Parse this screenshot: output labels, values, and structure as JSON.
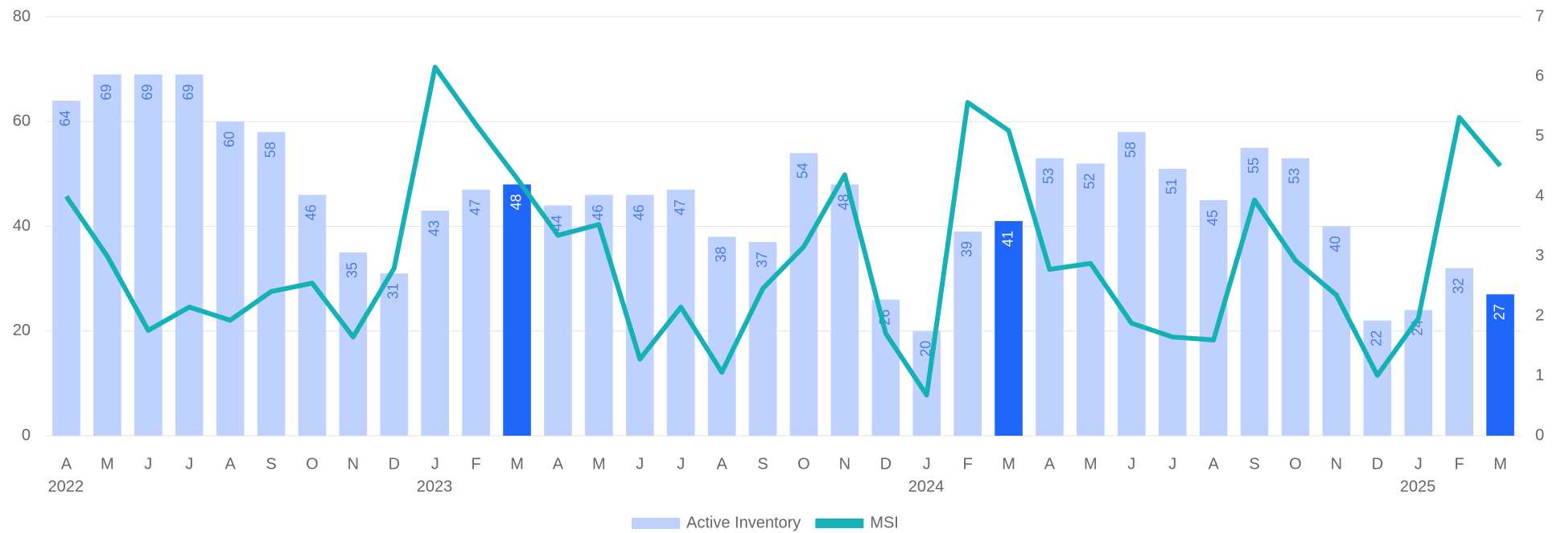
{
  "chart_data": {
    "type": "bar_line",
    "categories": [
      "A",
      "M",
      "J",
      "J",
      "A",
      "S",
      "O",
      "N",
      "D",
      "J",
      "F",
      "M",
      "A",
      "M",
      "J",
      "J",
      "A",
      "S",
      "O",
      "N",
      "D",
      "J",
      "F",
      "M",
      "A",
      "M",
      "J",
      "J",
      "A",
      "S",
      "O",
      "N",
      "D",
      "J",
      "F",
      "M"
    ],
    "year_labels": [
      "2022",
      null,
      null,
      null,
      null,
      null,
      null,
      null,
      null,
      "2023",
      null,
      null,
      null,
      null,
      null,
      null,
      null,
      null,
      null,
      null,
      null,
      "2024",
      null,
      null,
      null,
      null,
      null,
      null,
      null,
      null,
      null,
      null,
      null,
      "2025",
      null,
      null
    ],
    "series": [
      {
        "name": "Active Inventory",
        "type": "bar",
        "color": "#bed2fd",
        "highlight_color": "#1f66fb",
        "highlight": [
          false,
          false,
          false,
          false,
          false,
          false,
          false,
          false,
          false,
          false,
          false,
          true,
          false,
          false,
          false,
          false,
          false,
          false,
          false,
          false,
          false,
          false,
          false,
          true,
          false,
          false,
          false,
          false,
          false,
          false,
          false,
          false,
          false,
          false,
          false,
          true
        ],
        "values": [
          64,
          69,
          69,
          69,
          60,
          58,
          46,
          35,
          31,
          43,
          47,
          48,
          44,
          46,
          46,
          47,
          38,
          37,
          54,
          48,
          26,
          20,
          39,
          41,
          53,
          52,
          58,
          51,
          45,
          55,
          53,
          40,
          22,
          24,
          32,
          27
        ]
      },
      {
        "name": "MSI",
        "type": "line",
        "axis": "y2",
        "color": "#14b1b6",
        "values": [
          4.0,
          3.0,
          1.76,
          2.15,
          1.93,
          2.41,
          2.55,
          1.65,
          2.8,
          6.16,
          5.2,
          4.3,
          3.35,
          3.53,
          1.28,
          2.15,
          1.06,
          2.46,
          3.16,
          4.36,
          1.71,
          0.68,
          5.57,
          5.1,
          2.78,
          2.88,
          1.88,
          1.65,
          1.6,
          3.94,
          2.93,
          2.35,
          1.01,
          1.96,
          5.32,
          4.51
        ]
      }
    ],
    "ylim": [
      0,
      80
    ],
    "yticks": [
      0,
      20,
      40,
      60,
      80
    ],
    "y2lim": [
      0,
      7
    ],
    "y2ticks": [
      0,
      1,
      2,
      3,
      4,
      5,
      6,
      7
    ],
    "grid": true,
    "legend": "bottom"
  }
}
